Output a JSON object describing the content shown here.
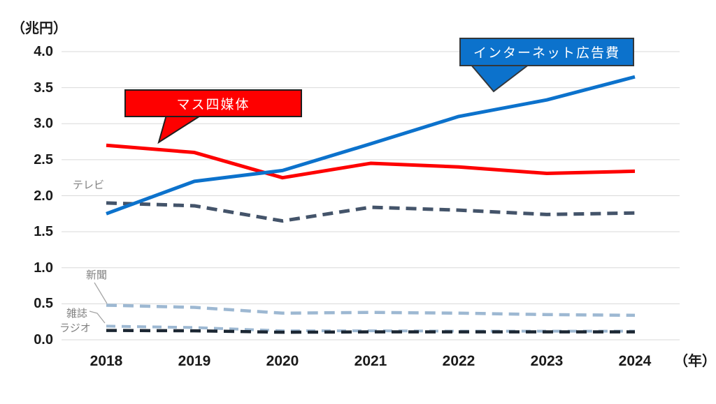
{
  "chart_data": {
    "type": "line",
    "title": "",
    "x": [
      2018,
      2019,
      2020,
      2021,
      2022,
      2023,
      2024
    ],
    "x_unit": "（年）",
    "y_unit": "（兆円）",
    "ylim": [
      0.0,
      4.0
    ],
    "y_tick_step": 0.5,
    "grid": "horizontal",
    "legend_position": "callouts-and-inline-labels",
    "series": [
      {
        "id": "internet",
        "name": "インターネット広告費",
        "values": [
          1.75,
          2.2,
          2.35,
          2.72,
          3.1,
          3.33,
          3.65
        ],
        "color": "#0C72CC",
        "style": "solid"
      },
      {
        "id": "mass4",
        "name": "マス四媒体",
        "values": [
          2.7,
          2.6,
          2.25,
          2.45,
          2.4,
          2.31,
          2.34
        ],
        "color": "#FE0000",
        "style": "solid"
      },
      {
        "id": "tv",
        "name": "テレビ",
        "values": [
          1.9,
          1.86,
          1.65,
          1.84,
          1.8,
          1.74,
          1.76
        ],
        "color": "#44546A",
        "style": "dashed"
      },
      {
        "id": "newspaper",
        "name": "新聞",
        "values": [
          0.48,
          0.45,
          0.37,
          0.38,
          0.37,
          0.35,
          0.34
        ],
        "color": "#9DB8D2",
        "style": "dashed"
      },
      {
        "id": "magazine",
        "name": "雑誌",
        "values": [
          0.19,
          0.17,
          0.125,
          0.125,
          0.12,
          0.12,
          0.12
        ],
        "color": "#9DB8D2",
        "style": "dashed"
      },
      {
        "id": "radio",
        "name": "ラジオ",
        "values": [
          0.13,
          0.125,
          0.105,
          0.11,
          0.11,
          0.11,
          0.11
        ],
        "color": "#1C2733",
        "style": "dashed"
      }
    ]
  },
  "y_axis": {
    "unit_label": "（兆円）",
    "ticks": [
      "4.0",
      "3.5",
      "3.0",
      "2.5",
      "2.0",
      "1.5",
      "1.0",
      "0.5",
      "0.0"
    ]
  },
  "x_axis": {
    "years": [
      "2018",
      "2019",
      "2020",
      "2021",
      "2022",
      "2023",
      "2024"
    ],
    "unit_label": "（年）"
  },
  "callouts": {
    "internet": {
      "label": "インターネット広告費",
      "fill": "#0C72CC",
      "border": "#33373B"
    },
    "mass4": {
      "label": "マス四媒体",
      "fill": "#FE0000",
      "border": "#1F1F1F"
    }
  },
  "series_labels": {
    "tv": "テレビ",
    "newspaper": "新聞",
    "magazine": "雑誌",
    "radio": "ラジオ"
  },
  "colors": {
    "background": "#FFFFFF",
    "gridline": "#D9D9D9",
    "axis_text": "#1A1A1A",
    "series_label_text": "#808080",
    "leader_line": "#A6A6A6"
  }
}
